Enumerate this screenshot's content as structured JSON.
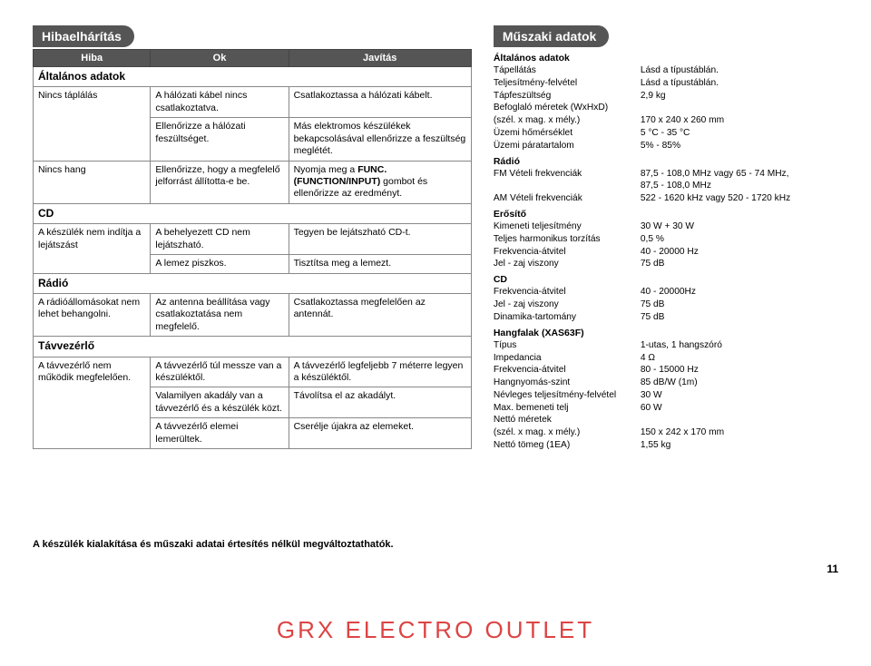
{
  "troubleshoot": {
    "title": "Hibaelhárítás",
    "headers": [
      "Hiba",
      "Ok",
      "Javítás"
    ],
    "groups": [
      {
        "title": "Általános adatok",
        "rows": [
          [
            "Nincs táplálás",
            "A hálózati kábel nincs csatlakoztatva.",
            "Csatlakoztassa a hálózati kábelt."
          ],
          [
            "",
            "Ellenőrizze a hálózati feszültséget.",
            "Más elektromos készülékek bekapcsolásával ellenőrizze a feszültség meglétét."
          ],
          [
            "Nincs hang",
            "Ellenőrizze, hogy a megfelelő jelforrást állította-e be.",
            "Nyomja meg a FUNC. (FUNCTION/INPUT) gombot és ellenőrizze az eredményt."
          ]
        ]
      },
      {
        "title": "CD",
        "rows": [
          [
            "A készülék nem indítja a lejátszást",
            "A behelyezett CD nem lejátszható.",
            "Tegyen be lejátszható CD-t."
          ],
          [
            "",
            "A lemez piszkos.",
            "Tisztítsa meg a lemezt."
          ]
        ]
      },
      {
        "title": "Rádió",
        "rows": [
          [
            "A rádióállomásokat nem lehet behangolni.",
            "Az antenna beállítása vagy csatlakoztatása nem megfelelő.",
            "Csatlakoztassa megfelelően az antennát."
          ]
        ]
      },
      {
        "title": "Távvezérlő",
        "rows": [
          [
            "A távvezérlő nem működik megfelelően.",
            "A távvezérlő túl messze van a készüléktől.",
            "A távvezérlő legfeljebb 7 méterre legyen a készüléktől."
          ],
          [
            "",
            "Valamilyen akadály van a távvezérlő és a készülék közt.",
            "Távolítsa el az akadályt."
          ],
          [
            "",
            "A távvezérlő elemei lemerültek.",
            "Cserélje újakra az elemeket."
          ]
        ]
      }
    ]
  },
  "specs": {
    "title": "Műszaki adatok",
    "groups": [
      {
        "title": "Általános adatok",
        "rows": [
          [
            "Tápellátás",
            "Lásd a típustáblán."
          ],
          [
            "Teljesítmény-felvétel",
            "Lásd a típustáblán."
          ],
          [
            "Tápfeszültség",
            "2,9 kg"
          ],
          [
            "Befoglaló méretek (WxHxD)",
            ""
          ],
          [
            "(szél. x mag. x mély.)",
            "170 x 240 x 260 mm"
          ],
          [
            "Üzemi hőmérséklet",
            "5 °C - 35 °C"
          ],
          [
            "Üzemi páratartalom",
            "5% - 85%"
          ]
        ]
      },
      {
        "title": "Rádió",
        "rows": [
          [
            "FM Vételi frekvenciák",
            "87,5 - 108,0 MHz vagy 65 - 74 MHz,"
          ],
          [
            "",
            "87,5 - 108,0 MHz"
          ],
          [
            "AM Vételi frekvenciák",
            "522 - 1620 kHz vagy 520 - 1720 kHz"
          ]
        ]
      },
      {
        "title": "Erősítő",
        "rows": [
          [
            "Kimeneti teljesítmény",
            "30 W + 30 W"
          ],
          [
            "Teljes harmonikus torzítás",
            "0,5 %"
          ],
          [
            "Frekvencia-átvitel",
            "40 - 20000 Hz"
          ],
          [
            "Jel - zaj viszony",
            "75 dB"
          ]
        ]
      },
      {
        "title": "CD",
        "rows": [
          [
            "Frekvencia-átvitel",
            "40 - 20000Hz"
          ],
          [
            "Jel - zaj viszony",
            "75 dB"
          ],
          [
            "Dinamika-tartomány",
            "75 dB"
          ]
        ]
      },
      {
        "title": "Hangfalak (XAS63F)",
        "rows": [
          [
            "Típus",
            "1-utas, 1 hangszóró"
          ],
          [
            "Impedancia",
            "4 Ω"
          ],
          [
            "Frekvencia-átvitel",
            "80 - 15000 Hz"
          ],
          [
            "Hangnyomás-szint",
            "85 dB/W (1m)"
          ],
          [
            "Névleges teljesítmény-felvétel",
            "30 W"
          ],
          [
            "Max. bemeneti telj",
            "60 W"
          ],
          [
            "Nettó méretek",
            ""
          ],
          [
            "(szél. x mag. x mély.)",
            "150 x 242 x 170 mm"
          ],
          [
            "Nettó tömeg (1EA)",
            "1,55 kg"
          ]
        ]
      }
    ]
  },
  "footnote": "A készülék kialakítása és műszaki adatai értesítés nélkül megváltoztathatók.",
  "pageNumber": "11",
  "brand": "GRX ELECTRO OUTLET",
  "colors": {
    "tabBg": "#555555",
    "brand": "#d34a44"
  }
}
